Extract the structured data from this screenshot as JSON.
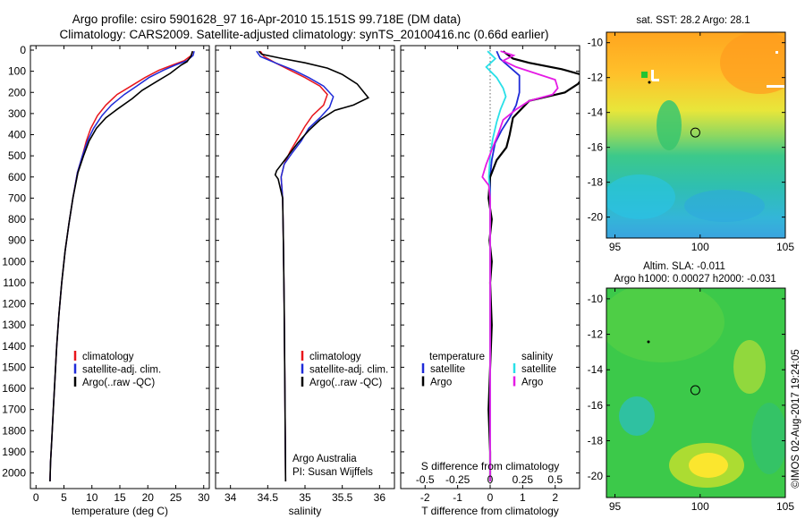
{
  "header": {
    "line1": "Argo profile: csiro 5901628_97 16-Apr-2010 15.151S 99.718E (DM data)",
    "line2": "Climatology: CARS2009. Satellite-adjusted climatology: synTS_20100416.nc (0.66d earlier)"
  },
  "side_stamp": "©IMOS 02-Aug-2017 19:24:05",
  "colors": {
    "climatology": "#e8151b",
    "satellite": "#1f2bd8",
    "argo": "#000000",
    "satellite_salinity": "#29e0e8",
    "argo_salinity": "#e51be5"
  },
  "chart_data": [
    {
      "id": "temperature",
      "type": "line",
      "xlabel": "temperature (deg C)",
      "ylabel": "",
      "xlim": [
        -1,
        31
      ],
      "ylim": [
        2060,
        0
      ],
      "xticks": [
        0,
        5,
        10,
        15,
        20,
        25,
        30
      ],
      "yticks": [
        0,
        100,
        200,
        300,
        400,
        500,
        600,
        700,
        800,
        900,
        1000,
        1100,
        1200,
        1300,
        1400,
        1500,
        1600,
        1700,
        1800,
        1900,
        2000
      ],
      "legend": [
        "climatology",
        "satellite-adj. clim.",
        "Argo(..raw -QC)"
      ],
      "series": [
        {
          "name": "climatology",
          "color_key": "climatology",
          "points": [
            [
              28.0,
              5
            ],
            [
              27.8,
              25
            ],
            [
              26.5,
              50
            ],
            [
              24.5,
              70
            ],
            [
              22.0,
              95
            ],
            [
              19.5,
              130
            ],
            [
              17.0,
              170
            ],
            [
              14.5,
              210
            ],
            [
              12.5,
              260
            ],
            [
              11.0,
              310
            ],
            [
              9.8,
              370
            ],
            [
              9.0,
              430
            ],
            [
              8.3,
              500
            ],
            [
              7.4,
              580
            ],
            [
              6.6,
              700
            ],
            [
              5.9,
              820
            ],
            [
              5.2,
              950
            ],
            [
              4.6,
              1100
            ],
            [
              4.1,
              1250
            ],
            [
              3.7,
              1400
            ],
            [
              3.4,
              1550
            ],
            [
              3.1,
              1700
            ],
            [
              2.8,
              1850
            ],
            [
              2.6,
              1950
            ],
            [
              2.5,
              2040
            ]
          ]
        },
        {
          "name": "satellite-adj. clim.",
          "color_key": "satellite",
          "points": [
            [
              28.3,
              5
            ],
            [
              28.1,
              25
            ],
            [
              27.0,
              50
            ],
            [
              25.0,
              70
            ],
            [
              22.8,
              95
            ],
            [
              20.2,
              130
            ],
            [
              18.0,
              170
            ],
            [
              15.8,
              210
            ],
            [
              13.5,
              260
            ],
            [
              11.8,
              310
            ],
            [
              10.3,
              370
            ],
            [
              9.2,
              430
            ],
            [
              8.3,
              500
            ],
            [
              7.4,
              580
            ],
            [
              6.6,
              700
            ],
            [
              5.9,
              820
            ],
            [
              5.2,
              950
            ],
            [
              4.6,
              1100
            ],
            [
              4.1,
              1250
            ],
            [
              3.7,
              1400
            ],
            [
              3.4,
              1550
            ],
            [
              3.1,
              1700
            ],
            [
              2.8,
              1850
            ],
            [
              2.6,
              1950
            ],
            [
              2.5,
              2040
            ]
          ]
        },
        {
          "name": "Argo(..raw -QC)",
          "color_key": "argo",
          "points": [
            [
              28.0,
              5
            ],
            [
              27.7,
              30
            ],
            [
              27.0,
              55
            ],
            [
              26.0,
              70
            ],
            [
              25.0,
              90
            ],
            [
              24.0,
              110
            ],
            [
              21.5,
              150
            ],
            [
              19.0,
              190
            ],
            [
              17.2,
              230
            ],
            [
              14.5,
              280
            ],
            [
              12.5,
              320
            ],
            [
              10.8,
              370
            ],
            [
              9.5,
              430
            ],
            [
              8.5,
              500
            ],
            [
              7.5,
              580
            ],
            [
              6.6,
              700
            ],
            [
              5.9,
              820
            ],
            [
              5.2,
              950
            ],
            [
              4.6,
              1100
            ],
            [
              4.1,
              1250
            ],
            [
              3.7,
              1400
            ],
            [
              3.4,
              1550
            ],
            [
              3.1,
              1700
            ],
            [
              2.8,
              1850
            ],
            [
              2.6,
              1950
            ],
            [
              2.5,
              2040
            ]
          ]
        }
      ]
    },
    {
      "id": "salinity",
      "type": "line",
      "xlabel": "salinity",
      "ylabel": "",
      "xlim": [
        33.8,
        36.2
      ],
      "ylim": [
        2060,
        0
      ],
      "xticks": [
        34,
        34.5,
        35,
        35.5,
        36
      ],
      "legend": [
        "climatology",
        "satellite-adj. clim.",
        "Argo(..raw -QC)"
      ],
      "annotation": [
        "Argo Australia",
        "PI: Susan Wijffels"
      ],
      "series": [
        {
          "name": "climatology",
          "color_key": "climatology",
          "points": [
            [
              34.4,
              5
            ],
            [
              34.45,
              30
            ],
            [
              34.6,
              60
            ],
            [
              34.8,
              95
            ],
            [
              35.0,
              130
            ],
            [
              35.2,
              170
            ],
            [
              35.3,
              210
            ],
            [
              35.25,
              260
            ],
            [
              35.1,
              310
            ],
            [
              35.0,
              360
            ],
            [
              34.9,
              420
            ],
            [
              34.8,
              480
            ],
            [
              34.72,
              540
            ],
            [
              34.68,
              600
            ],
            [
              34.7,
              700
            ],
            [
              34.71,
              900
            ],
            [
              34.72,
              1200
            ],
            [
              34.73,
              1600
            ],
            [
              34.74,
              2040
            ]
          ]
        },
        {
          "name": "satellite-adj. clim.",
          "color_key": "satellite",
          "points": [
            [
              34.35,
              5
            ],
            [
              34.4,
              30
            ],
            [
              34.6,
              60
            ],
            [
              34.85,
              95
            ],
            [
              35.05,
              130
            ],
            [
              35.25,
              170
            ],
            [
              35.38,
              220
            ],
            [
              35.33,
              270
            ],
            [
              35.2,
              320
            ],
            [
              35.05,
              370
            ],
            [
              34.95,
              430
            ],
            [
              34.82,
              490
            ],
            [
              34.72,
              540
            ],
            [
              34.68,
              600
            ],
            [
              34.7,
              700
            ],
            [
              34.71,
              900
            ],
            [
              34.72,
              1200
            ],
            [
              34.73,
              1600
            ],
            [
              34.74,
              2040
            ]
          ]
        },
        {
          "name": "Argo(..raw -QC)",
          "color_key": "argo",
          "points": [
            [
              34.38,
              5
            ],
            [
              34.42,
              20
            ],
            [
              34.7,
              40
            ],
            [
              35.0,
              60
            ],
            [
              35.3,
              85
            ],
            [
              35.5,
              115
            ],
            [
              35.7,
              160
            ],
            [
              35.85,
              225
            ],
            [
              35.65,
              260
            ],
            [
              35.4,
              285
            ],
            [
              35.2,
              330
            ],
            [
              35.05,
              380
            ],
            [
              34.9,
              440
            ],
            [
              34.75,
              510
            ],
            [
              34.62,
              570
            ],
            [
              34.6,
              590
            ],
            [
              34.64,
              610
            ],
            [
              34.7,
              700
            ],
            [
              34.71,
              900
            ],
            [
              34.72,
              1200
            ],
            [
              34.73,
              1600
            ],
            [
              34.74,
              2040
            ]
          ]
        }
      ]
    },
    {
      "id": "difference",
      "type": "line",
      "xlabel": "T difference from climatology",
      "xlabel_top": "S difference from climatology",
      "xlim": [
        -2.75,
        2.75
      ],
      "ylim": [
        2060,
        0
      ],
      "xticks": [
        -2,
        -1,
        0,
        1,
        2
      ],
      "xticks_top": [
        "-0.5",
        "-0.25",
        "0",
        "0.25",
        "0.5"
      ],
      "legend_temperature_header": "temperature",
      "legend_salinity_header": "salinity",
      "legend_temperature": [
        "satellite",
        "Argo"
      ],
      "legend_salinity": [
        "satellite",
        "Argo"
      ],
      "series": [
        {
          "name": "satellite",
          "group": "temperature",
          "color_key": "satellite",
          "points": [
            [
              0.2,
              5
            ],
            [
              0.3,
              40
            ],
            [
              0.6,
              80
            ],
            [
              0.9,
              120
            ],
            [
              0.9,
              160
            ],
            [
              0.9,
              200
            ],
            [
              0.8,
              260
            ],
            [
              0.6,
              320
            ],
            [
              0.35,
              380
            ],
            [
              0.15,
              440
            ],
            [
              0.05,
              520
            ],
            [
              0.0,
              600
            ],
            [
              0.0,
              800
            ],
            [
              0.0,
              1100
            ],
            [
              0.0,
              1500
            ],
            [
              0.0,
              2040
            ]
          ]
        },
        {
          "name": "Argo",
          "group": "temperature",
          "color_key": "argo",
          "points": [
            [
              0.4,
              5
            ],
            [
              0.7,
              40
            ],
            [
              1.2,
              60
            ],
            [
              2.2,
              90
            ],
            [
              2.9,
              120
            ],
            [
              2.7,
              160
            ],
            [
              2.3,
              200
            ],
            [
              1.2,
              240
            ],
            [
              0.7,
              320
            ],
            [
              0.6,
              400
            ],
            [
              0.5,
              460
            ],
            [
              0.2,
              520
            ],
            [
              0.0,
              600
            ],
            [
              -0.05,
              700
            ],
            [
              0.05,
              800
            ],
            [
              -0.02,
              900
            ],
            [
              0.05,
              1000
            ],
            [
              0.0,
              1100
            ],
            [
              0.05,
              1300
            ],
            [
              0.0,
              1500
            ],
            [
              -0.05,
              1700
            ],
            [
              0.0,
              1900
            ],
            [
              0.0,
              2040
            ]
          ]
        },
        {
          "name": "satellite",
          "group": "salinity",
          "color_key": "satellite_salinity",
          "points": [
            [
              -0.02,
              5
            ],
            [
              0.04,
              40
            ],
            [
              -0.03,
              80
            ],
            [
              0.05,
              130
            ],
            [
              0.1,
              180
            ],
            [
              0.12,
              220
            ],
            [
              0.08,
              280
            ],
            [
              0.05,
              340
            ],
            [
              0.02,
              420
            ],
            [
              0.0,
              500
            ],
            [
              -0.01,
              600
            ],
            [
              0.0,
              700
            ],
            [
              0.0,
              900
            ],
            [
              0.0,
              1200
            ],
            [
              0.0,
              1600
            ],
            [
              0.0,
              2040
            ]
          ]
        },
        {
          "name": "Argo",
          "group": "salinity",
          "color_key": "argo_salinity",
          "points": [
            [
              0.08,
              5
            ],
            [
              0.18,
              25
            ],
            [
              0.1,
              50
            ],
            [
              0.2,
              80
            ],
            [
              0.35,
              110
            ],
            [
              0.5,
              140
            ],
            [
              0.52,
              180
            ],
            [
              0.48,
              210
            ],
            [
              0.3,
              240
            ],
            [
              0.2,
              280
            ],
            [
              0.1,
              330
            ],
            [
              0.06,
              400
            ],
            [
              0.02,
              460
            ],
            [
              -0.03,
              540
            ],
            [
              -0.06,
              600
            ],
            [
              -0.01,
              640
            ],
            [
              0.0,
              700
            ],
            [
              0.0,
              1000
            ],
            [
              0.0,
              1500
            ],
            [
              0.0,
              2040
            ]
          ]
        }
      ]
    },
    {
      "id": "sst_map",
      "type": "heatmap",
      "title": "sat. SST: 28.2  Argo: 28.1",
      "xlim": [
        94.5,
        105
      ],
      "ylim": [
        -21.2,
        -9.4
      ],
      "xticks": [
        95,
        100,
        105
      ],
      "yticks": [
        -10,
        -12,
        -14,
        -16,
        -18,
        -20
      ],
      "marker": {
        "lon": 99.718,
        "lat": -15.151
      }
    },
    {
      "id": "sla_map",
      "type": "heatmap",
      "title": [
        "Altim. SLA: -0.011",
        "Argo h1000: 0.00027 h2000: -0.031"
      ],
      "xlim": [
        94.5,
        105
      ],
      "ylim": [
        -21.2,
        -9.4
      ],
      "xticks": [
        95,
        100,
        105
      ],
      "yticks": [
        -10,
        -12,
        -14,
        -16,
        -18,
        -20
      ],
      "marker": {
        "lon": 99.718,
        "lat": -15.151
      }
    }
  ]
}
